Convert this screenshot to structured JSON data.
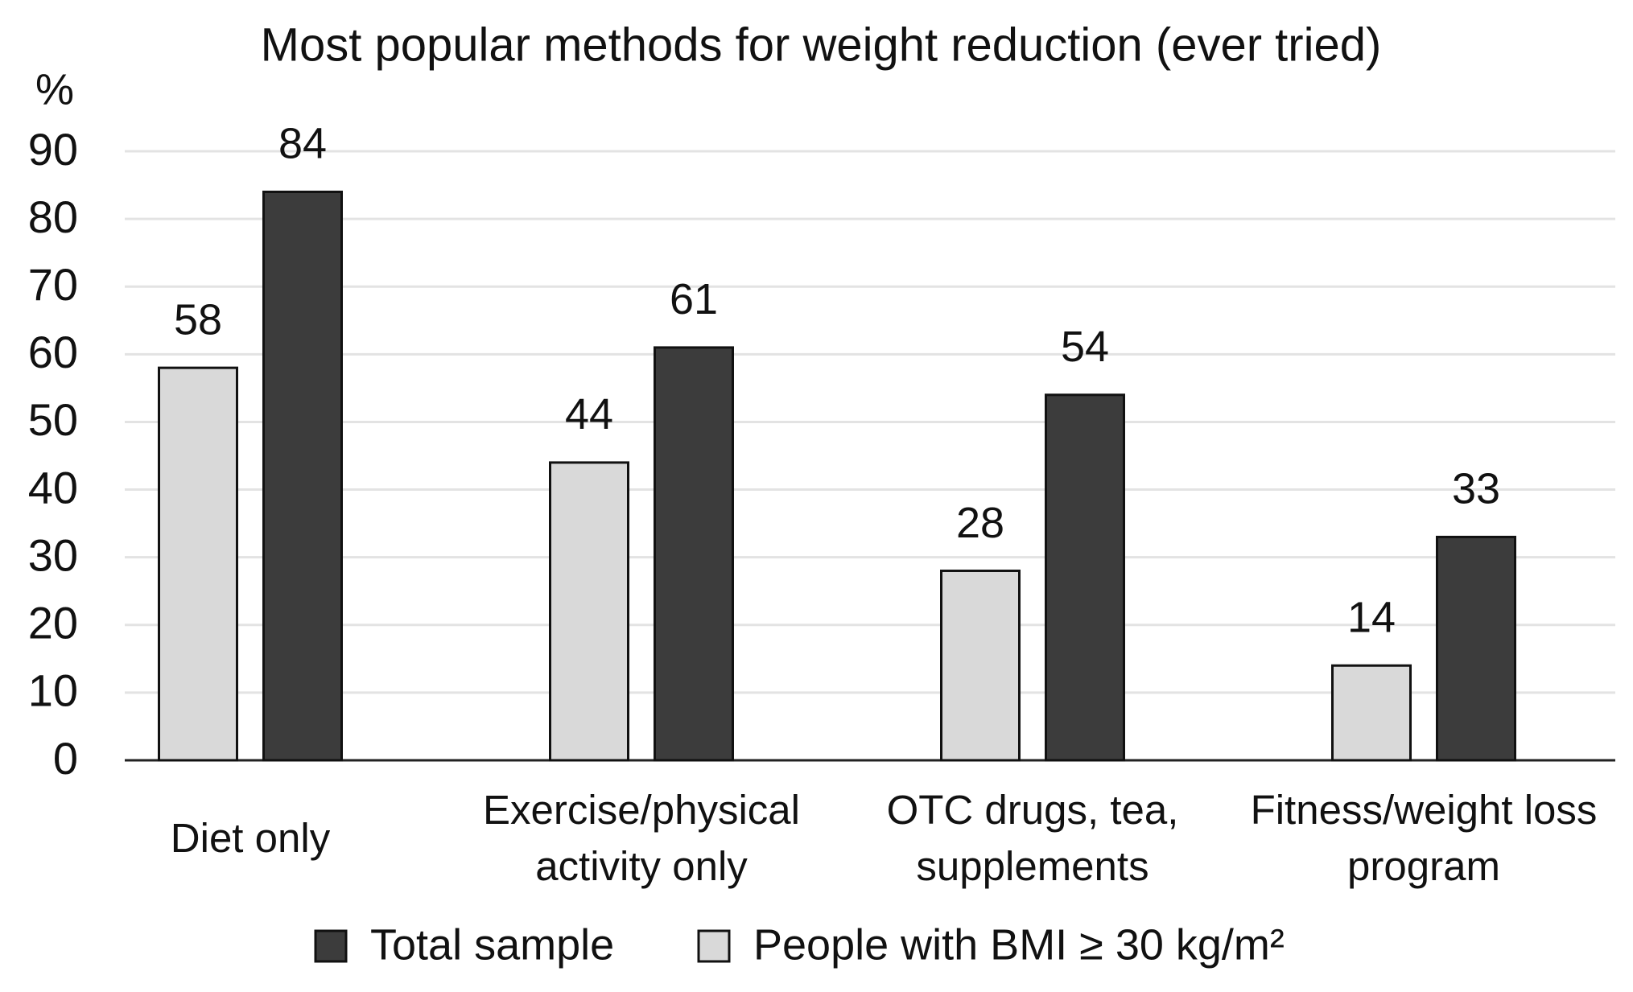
{
  "chart_data": {
    "type": "bar",
    "title": "Most popular methods for weight reduction (ever tried)",
    "y_label": "%",
    "categories": [
      "Diet only",
      "Exercise/physical\nactivity only",
      "OTC drugs, tea,\nsupplements",
      "Fitness/weight loss\nprogram"
    ],
    "series": [
      {
        "name": "Total sample",
        "color": "#3c3c3c",
        "values": [
          84,
          61,
          54,
          33
        ]
      },
      {
        "name": "People with BMI ≥ 30 kg/m²",
        "color": "#d9d9d9",
        "values": [
          58,
          44,
          28,
          14
        ]
      }
    ],
    "ylim": [
      0,
      90
    ],
    "yticks": [
      0,
      10,
      20,
      30,
      40,
      50,
      60,
      70,
      80,
      90
    ],
    "grid": true
  }
}
